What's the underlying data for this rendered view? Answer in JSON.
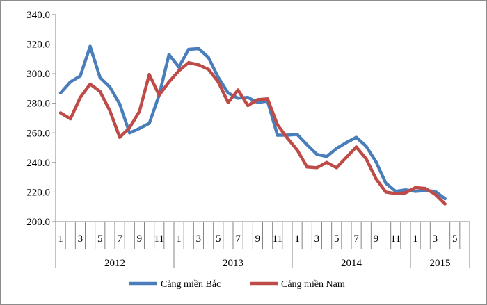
{
  "chart_data": {
    "type": "line",
    "title": "",
    "xlabel": "",
    "ylabel": "",
    "ylim": [
      200,
      340
    ],
    "yticks": [
      "200.0",
      "220.0",
      "240.0",
      "260.0",
      "280.0",
      "300.0",
      "320.0",
      "340.0"
    ],
    "grid": false,
    "legend_position": "bottom",
    "x": [
      1,
      2,
      3,
      4,
      5,
      6,
      7,
      8,
      9,
      10,
      11,
      12,
      1,
      2,
      3,
      4,
      5,
      6,
      7,
      8,
      9,
      10,
      11,
      12,
      1,
      2,
      3,
      4,
      5,
      6,
      7,
      8,
      9,
      10,
      11,
      12,
      1,
      2,
      3,
      4,
      5,
      6
    ],
    "x_tick_labels": [
      "1",
      "",
      "3",
      "",
      "5",
      "",
      "7",
      "",
      "9",
      "",
      "11",
      "",
      "1",
      "",
      "3",
      "",
      "5",
      "",
      "7",
      "",
      "9",
      "",
      "11",
      "",
      "1",
      "",
      "3",
      "",
      "5",
      "",
      "7",
      "",
      "9",
      "",
      "11",
      "",
      "1",
      "",
      "3",
      "",
      "5",
      ""
    ],
    "years": [
      {
        "label": "2012",
        "start": 0,
        "count": 12
      },
      {
        "label": "2013",
        "start": 12,
        "count": 12
      },
      {
        "label": "2014",
        "start": 24,
        "count": 12
      },
      {
        "label": "2015",
        "start": 36,
        "count": 6
      }
    ],
    "series": [
      {
        "name": "Cảng miền Bắc",
        "color": "#4a7ebb",
        "values": [
          287,
          294.5,
          298.5,
          318.5,
          297.5,
          291,
          279.5,
          260,
          263,
          266.5,
          285.5,
          313,
          304.5,
          316.5,
          317,
          311,
          297.5,
          287,
          283.5,
          284,
          280.5,
          281.5,
          258.5,
          258.5,
          259,
          252,
          245.5,
          244,
          249.5,
          253.5,
          257,
          251,
          240.5,
          226,
          220.5,
          221.5,
          220.5,
          221,
          220.5,
          215.5,
          null,
          null
        ]
      },
      {
        "name": "Cảng miền Nam",
        "color": "#be4b48",
        "values": [
          273.5,
          269.5,
          284,
          293,
          288,
          275,
          257,
          263.5,
          274.5,
          299.5,
          285.5,
          294.5,
          302,
          307.5,
          306,
          303,
          294.5,
          280.5,
          289,
          278.5,
          282.5,
          283,
          265.5,
          256.5,
          248.5,
          237,
          236.5,
          240,
          236.5,
          243.5,
          250.5,
          242.5,
          229,
          220,
          219,
          219.5,
          223,
          222.5,
          218.5,
          212,
          null,
          null
        ]
      }
    ]
  }
}
